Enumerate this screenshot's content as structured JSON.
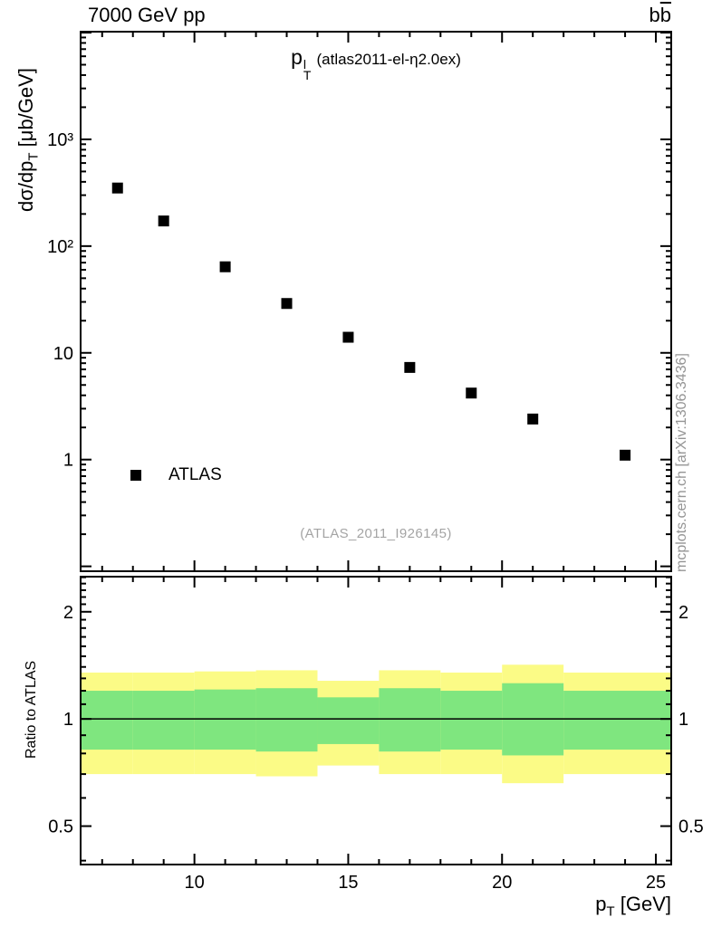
{
  "header": {
    "collision": "7000 GeV pp",
    "process_b": "b",
    "process_bbar": "b"
  },
  "main_plot": {
    "title": {
      "p": "p",
      "sup": "l",
      "sub": "T",
      "rest": "(atlas2011-el-η2.0ex)"
    },
    "ylabel": {
      "pre": "dσ/dp",
      "sub": "T",
      "post": " [μb/GeV]"
    },
    "ref_label": "(ATLAS_2011_I926145)"
  },
  "ratio_plot": {
    "ylabel": "Ratio to ATLAS"
  },
  "xaxis": {
    "label_pre": "p",
    "label_sub": "T",
    "label_post": " [GeV]"
  },
  "watermark": "mcplots.cern.ch [arXiv:1306.3436]",
  "colors": {
    "yellow": "#fbfb86",
    "green": "#7fe67f",
    "marker": "#000000",
    "muted": "#959595"
  },
  "chart_data": [
    {
      "type": "scatter",
      "title": "pT^l (atlas2011-el-η2.0ex)",
      "xlabel": "pT [GeV]",
      "ylabel": "dσ/dpT [μb/GeV]",
      "x_scale": "linear",
      "y_scale": "log",
      "xlim": [
        6.3,
        25.5
      ],
      "ylim": [
        0.09,
        10200
      ],
      "x_major_ticks": [
        10,
        15,
        20,
        25
      ],
      "x_minor_step": 1,
      "y_major_ticks": [
        {
          "value": 1,
          "label": "1"
        },
        {
          "value": 10,
          "label": "10"
        },
        {
          "value": 100,
          "label": "10²"
        },
        {
          "value": 1000,
          "label": "10³"
        }
      ],
      "series": [
        {
          "name": "ATLAS",
          "marker": "filled-square",
          "color": "#000000",
          "x": [
            7.5,
            9,
            11,
            13,
            15,
            17,
            19,
            21,
            24
          ],
          "y": [
            350,
            172,
            64,
            29,
            14,
            7.3,
            4.2,
            2.4,
            1.1
          ]
        }
      ],
      "legend": {
        "label": "ATLAS",
        "x": 8.1,
        "y": 0.75
      }
    },
    {
      "type": "ratio-bands",
      "ylabel": "Ratio to ATLAS",
      "y_scale": "log",
      "ylim": [
        0.39,
        2.51
      ],
      "y_major_ticks": [
        {
          "value": 0.5,
          "label": "0.5"
        },
        {
          "value": 1,
          "label": "1"
        },
        {
          "value": 2,
          "label": "2"
        }
      ],
      "reference_line": 1.0,
      "bands": [
        {
          "x0": 6.3,
          "x1": 8,
          "yellow": [
            0.7,
            1.35
          ],
          "green": [
            0.82,
            1.2
          ]
        },
        {
          "x0": 8,
          "x1": 10,
          "yellow": [
            0.7,
            1.35
          ],
          "green": [
            0.82,
            1.2
          ]
        },
        {
          "x0": 10,
          "x1": 12,
          "yellow": [
            0.7,
            1.36
          ],
          "green": [
            0.82,
            1.21
          ]
        },
        {
          "x0": 12,
          "x1": 14,
          "yellow": [
            0.69,
            1.37
          ],
          "green": [
            0.81,
            1.22
          ]
        },
        {
          "x0": 14,
          "x1": 16,
          "yellow": [
            0.74,
            1.28
          ],
          "green": [
            0.85,
            1.15
          ]
        },
        {
          "x0": 16,
          "x1": 18,
          "yellow": [
            0.7,
            1.37
          ],
          "green": [
            0.81,
            1.22
          ]
        },
        {
          "x0": 18,
          "x1": 20,
          "yellow": [
            0.7,
            1.35
          ],
          "green": [
            0.82,
            1.2
          ]
        },
        {
          "x0": 20,
          "x1": 22,
          "yellow": [
            0.66,
            1.42
          ],
          "green": [
            0.79,
            1.26
          ]
        },
        {
          "x0": 22,
          "x1": 25.5,
          "yellow": [
            0.7,
            1.35
          ],
          "green": [
            0.82,
            1.2
          ]
        }
      ]
    }
  ]
}
